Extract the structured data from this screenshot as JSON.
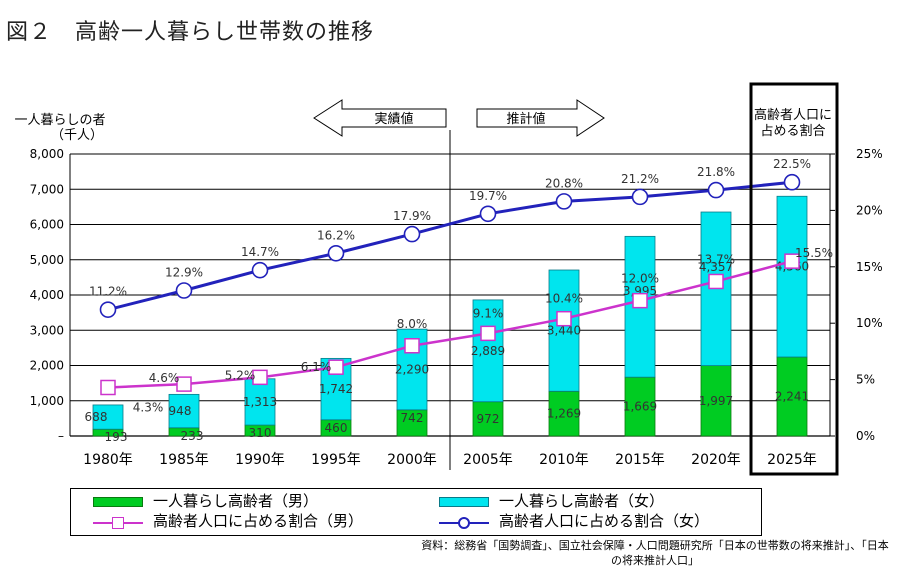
{
  "figure_title": "図２　高齢一人暮らし世帯数の推移",
  "colors": {
    "male_bar": "#00cc22",
    "female_bar": "#00e5ee",
    "male_ratio_line": "#cc33cc",
    "total_ratio_line": "#2222bb",
    "highlight_box": "#000000"
  },
  "legend": {
    "male_bar": "一人暮らし高齢者（男）",
    "female_bar": "一人暮らし高齢者（女）",
    "male_ratio": "高齢者人口に占める割合（男）",
    "female_ratio": "高齢者人口に占める割合（女）"
  },
  "source_note": "資料：総務省「国勢調査」、国立社会保障・人口問題研究所「日本の世帯数の将来推計」、「日本の将来推計人口」",
  "chart_data": {
    "type": "bar",
    "categories": [
      "1980年",
      "1985年",
      "1990年",
      "1995年",
      "2000年",
      "2005年",
      "2010年",
      "2015年",
      "2020年",
      "2025年"
    ],
    "ylabel": "一人暮らしの者\n（千人）",
    "y2label": "高齢者人口に\n占める割合",
    "ylim": [
      0,
      8000
    ],
    "y2lim": [
      0,
      25
    ],
    "y_ticks": [
      "8,000",
      "7,000",
      "6,000",
      "5,000",
      "4,000",
      "3,000",
      "2,000",
      "1,000",
      "–"
    ],
    "y2_ticks": [
      "25%",
      "20%",
      "15%",
      "10%",
      "5%",
      "0%"
    ],
    "arrow_labels": {
      "actual": "実績値",
      "estimate": "推計値"
    },
    "split_after_index": 4,
    "highlight_index": 9,
    "stacked": true,
    "grid": true,
    "series": [
      {
        "name": "一人暮らし高齢者（男）",
        "axis": "left",
        "values": [
          193,
          233,
          310,
          460,
          742,
          972,
          1269,
          1669,
          1997,
          2241
        ],
        "labels": [
          "193",
          "233",
          "310",
          "460",
          "742",
          "972",
          "1,269",
          "1,669",
          "1,997",
          "2,241"
        ]
      },
      {
        "name": "一人暮らし高齢者（女）",
        "axis": "left",
        "values": [
          688,
          948,
          1313,
          1742,
          2290,
          2889,
          3440,
          3995,
          4357,
          4560
        ],
        "labels": [
          "688",
          "948",
          "1,313",
          "1,742",
          "2,290",
          "2,889",
          "3,440",
          "3,995",
          "4,357",
          "4,560"
        ]
      },
      {
        "name": "高齢者人口に占める割合（男）",
        "axis": "right",
        "type": "line",
        "values": [
          4.3,
          4.6,
          5.2,
          6.1,
          8.0,
          9.1,
          10.4,
          12.0,
          13.7,
          15.5
        ],
        "labels": [
          "4.3%",
          "4.6%",
          "5.2%",
          "6.1%",
          "8.0%",
          "9.1%",
          "10.4%",
          "12.0%",
          "13.7%",
          "15.5%"
        ]
      },
      {
        "name": "高齢者人口に占める割合（女）",
        "axis": "right",
        "type": "line",
        "values": [
          11.2,
          12.9,
          14.7,
          16.2,
          17.9,
          19.7,
          20.8,
          21.2,
          21.8,
          22.5
        ],
        "labels": [
          "11.2%",
          "12.9%",
          "14.7%",
          "16.2%",
          "17.9%",
          "19.7%",
          "20.8%",
          "21.2%",
          "21.8%",
          "22.5%"
        ]
      }
    ]
  }
}
